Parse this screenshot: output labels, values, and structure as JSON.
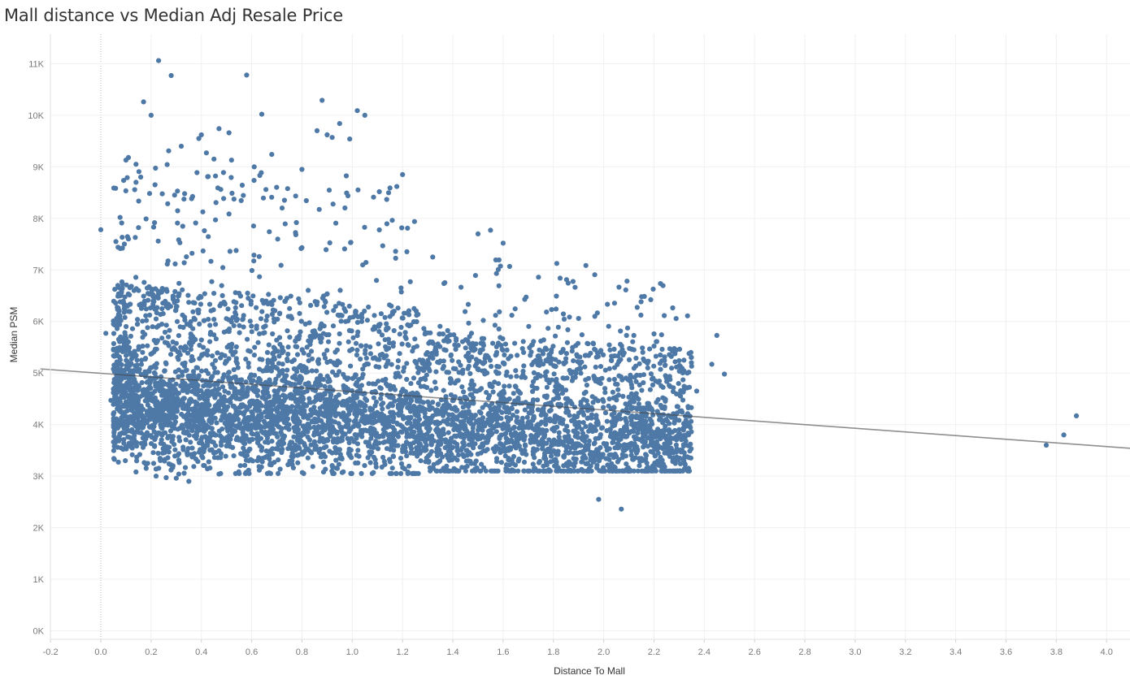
{
  "chart_data": {
    "type": "scatter",
    "title": "Mall distance vs Median Adj Resale Price",
    "xlabel": "Distance To Mall",
    "ylabel": "Median PSM",
    "xlim": [
      -0.24,
      4.1
    ],
    "ylim": [
      -200,
      11500
    ],
    "x_ticks": [
      -0.2,
      0.0,
      0.2,
      0.4,
      0.6,
      0.8,
      1.0,
      1.2,
      1.4,
      1.6,
      1.8,
      2.0,
      2.2,
      2.4,
      2.6,
      2.8,
      3.0,
      3.2,
      3.4,
      3.6,
      3.8,
      4.0
    ],
    "x_tick_labels": [
      "-0.2",
      "0.0",
      "0.2",
      "0.4",
      "0.6",
      "0.8",
      "1.0",
      "1.2",
      "1.4",
      "1.6",
      "1.8",
      "2.0",
      "2.2",
      "2.4",
      "2.6",
      "2.8",
      "3.0",
      "3.2",
      "3.4",
      "3.6",
      "3.8",
      "4.0"
    ],
    "y_ticks": [
      0,
      1000,
      2000,
      3000,
      4000,
      5000,
      6000,
      7000,
      8000,
      9000,
      10000,
      11000
    ],
    "y_tick_labels": [
      "0K",
      "1K",
      "2K",
      "3K",
      "4K",
      "5K",
      "6K",
      "7K",
      "8K",
      "9K",
      "10K",
      "11K"
    ],
    "grid": true,
    "zero_reference_line": "x = 0 (dotted)",
    "trend_line": {
      "x": [
        -0.24,
        4.1
      ],
      "y": [
        5080,
        3540
      ]
    },
    "point_color": "#4e79a7",
    "trend_color": "#444444",
    "points": [
      [
        0.0,
        7780
      ],
      [
        0.02,
        5770
      ],
      [
        0.04,
        4470
      ],
      [
        0.05,
        6010
      ],
      [
        0.06,
        7550
      ],
      [
        0.08,
        6520
      ],
      [
        0.09,
        4950
      ],
      [
        0.1,
        9130
      ],
      [
        0.11,
        9180
      ],
      [
        0.11,
        7600
      ],
      [
        0.13,
        5320
      ],
      [
        0.14,
        9050
      ],
      [
        0.14,
        8700
      ],
      [
        0.14,
        3080
      ],
      [
        0.15,
        7820
      ],
      [
        0.17,
        10260
      ],
      [
        0.18,
        7990
      ],
      [
        0.18,
        3230
      ],
      [
        0.2,
        10000
      ],
      [
        0.21,
        7830
      ],
      [
        0.22,
        3000
      ],
      [
        0.23,
        11060
      ],
      [
        0.26,
        2970
      ],
      [
        0.27,
        9310
      ],
      [
        0.28,
        10770
      ],
      [
        0.3,
        2960
      ],
      [
        0.31,
        3040
      ],
      [
        0.32,
        9400
      ],
      [
        0.35,
        2900
      ],
      [
        0.38,
        3730
      ],
      [
        0.39,
        9550
      ],
      [
        0.4,
        9620
      ],
      [
        0.42,
        9270
      ],
      [
        0.45,
        9150
      ],
      [
        0.47,
        3040
      ],
      [
        0.47,
        9740
      ],
      [
        0.51,
        9660
      ],
      [
        0.52,
        9130
      ],
      [
        0.58,
        10780
      ],
      [
        0.61,
        9000
      ],
      [
        0.64,
        10020
      ],
      [
        0.68,
        9240
      ],
      [
        0.8,
        8950
      ],
      [
        0.86,
        9700
      ],
      [
        0.88,
        10290
      ],
      [
        0.9,
        9620
      ],
      [
        0.95,
        9840
      ],
      [
        0.92,
        9570
      ],
      [
        0.96,
        3070
      ],
      [
        0.99,
        9540
      ],
      [
        1.02,
        10090
      ],
      [
        1.05,
        10000
      ],
      [
        1.15,
        8590
      ],
      [
        1.2,
        8850
      ],
      [
        1.22,
        7810
      ],
      [
        1.32,
        7250
      ],
      [
        1.5,
        7700
      ],
      [
        1.55,
        7770
      ],
      [
        1.6,
        7520
      ],
      [
        1.98,
        2550
      ],
      [
        2.07,
        2360
      ],
      [
        2.12,
        5730
      ],
      [
        2.2,
        5760
      ],
      [
        2.45,
        5730
      ],
      [
        2.48,
        4980
      ],
      [
        2.43,
        5170
      ],
      [
        2.37,
        4650
      ],
      [
        2.3,
        5240
      ],
      [
        3.76,
        3600
      ],
      [
        3.83,
        3800
      ],
      [
        3.88,
        4170
      ]
    ]
  }
}
